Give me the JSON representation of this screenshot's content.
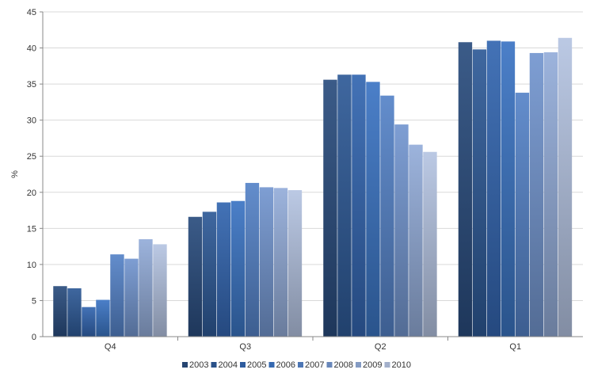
{
  "chart_data": {
    "type": "bar",
    "ylabel": "%",
    "ylim": [
      0,
      45
    ],
    "yticks": [
      0,
      5,
      10,
      15,
      20,
      25,
      30,
      35,
      40,
      45
    ],
    "categories": [
      "Q4",
      "Q3",
      "Q2",
      "Q1"
    ],
    "grid": true,
    "legend_position": "bottom",
    "series": [
      {
        "name": "2003",
        "color": "#2a4d7e",
        "values": [
          7.0,
          16.6,
          35.6,
          40.8
        ]
      },
      {
        "name": "2004",
        "color": "#2e5a97",
        "values": [
          6.7,
          17.3,
          36.3,
          39.8
        ]
      },
      {
        "name": "2005",
        "color": "#3366b0",
        "values": [
          4.1,
          18.6,
          36.3,
          41.0
        ]
      },
      {
        "name": "2006",
        "color": "#3b74c3",
        "values": [
          5.1,
          18.8,
          35.3,
          40.9
        ]
      },
      {
        "name": "2007",
        "color": "#5583c8",
        "values": [
          11.4,
          21.3,
          33.4,
          33.8
        ]
      },
      {
        "name": "2008",
        "color": "#7396cf",
        "values": [
          10.8,
          20.7,
          29.4,
          39.3
        ]
      },
      {
        "name": "2009",
        "color": "#93acd9",
        "values": [
          13.5,
          20.6,
          26.6,
          39.4
        ]
      },
      {
        "name": "2010",
        "color": "#b5c4e2",
        "values": [
          12.8,
          20.3,
          25.6,
          41.4
        ]
      }
    ]
  }
}
